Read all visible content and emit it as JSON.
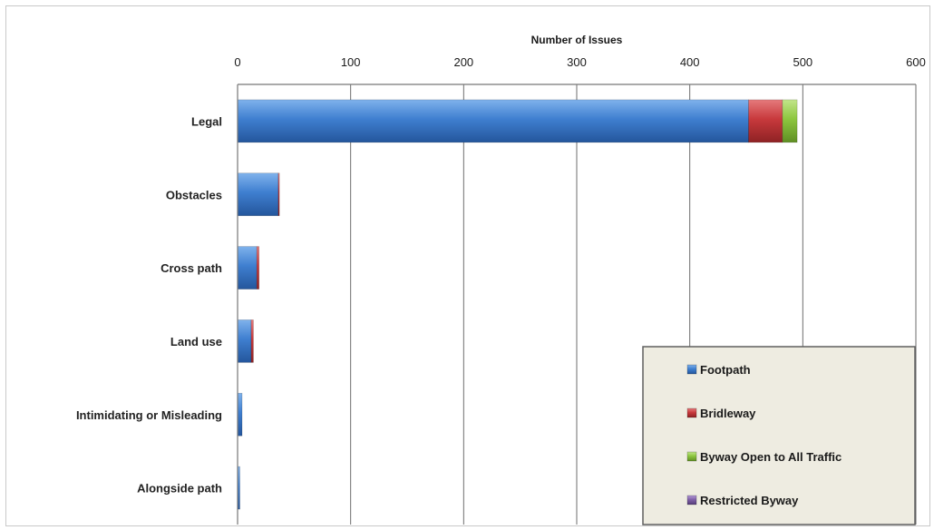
{
  "chart_data": {
    "type": "bar",
    "orientation": "horizontal",
    "stacked": true,
    "title": "",
    "xlabel": "Number of Issues",
    "ylabel": "",
    "xlim": [
      0,
      600
    ],
    "x_ticks": [
      "0",
      "100",
      "200",
      "300",
      "400",
      "500",
      "600"
    ],
    "grid": true,
    "legend_position": "bottom-right",
    "categories": [
      "Legal",
      "Obstacles",
      "Cross path",
      "Land use",
      "Intimidating or Misleading",
      "Alongside path"
    ],
    "series": [
      {
        "name": "Footpath",
        "color": "#3f7fd0",
        "values": [
          452,
          36,
          17,
          12,
          4,
          2
        ]
      },
      {
        "name": "Bridleway",
        "color": "#c8393c",
        "values": [
          30,
          1,
          2,
          2,
          0,
          0
        ]
      },
      {
        "name": "Byway Open to All Traffic",
        "color": "#8dc63f",
        "values": [
          13,
          0,
          0,
          0,
          0,
          0
        ]
      },
      {
        "name": "Restricted Byway",
        "color": "#8060a8",
        "values": [
          0,
          0,
          0,
          0,
          0,
          0
        ]
      }
    ]
  }
}
